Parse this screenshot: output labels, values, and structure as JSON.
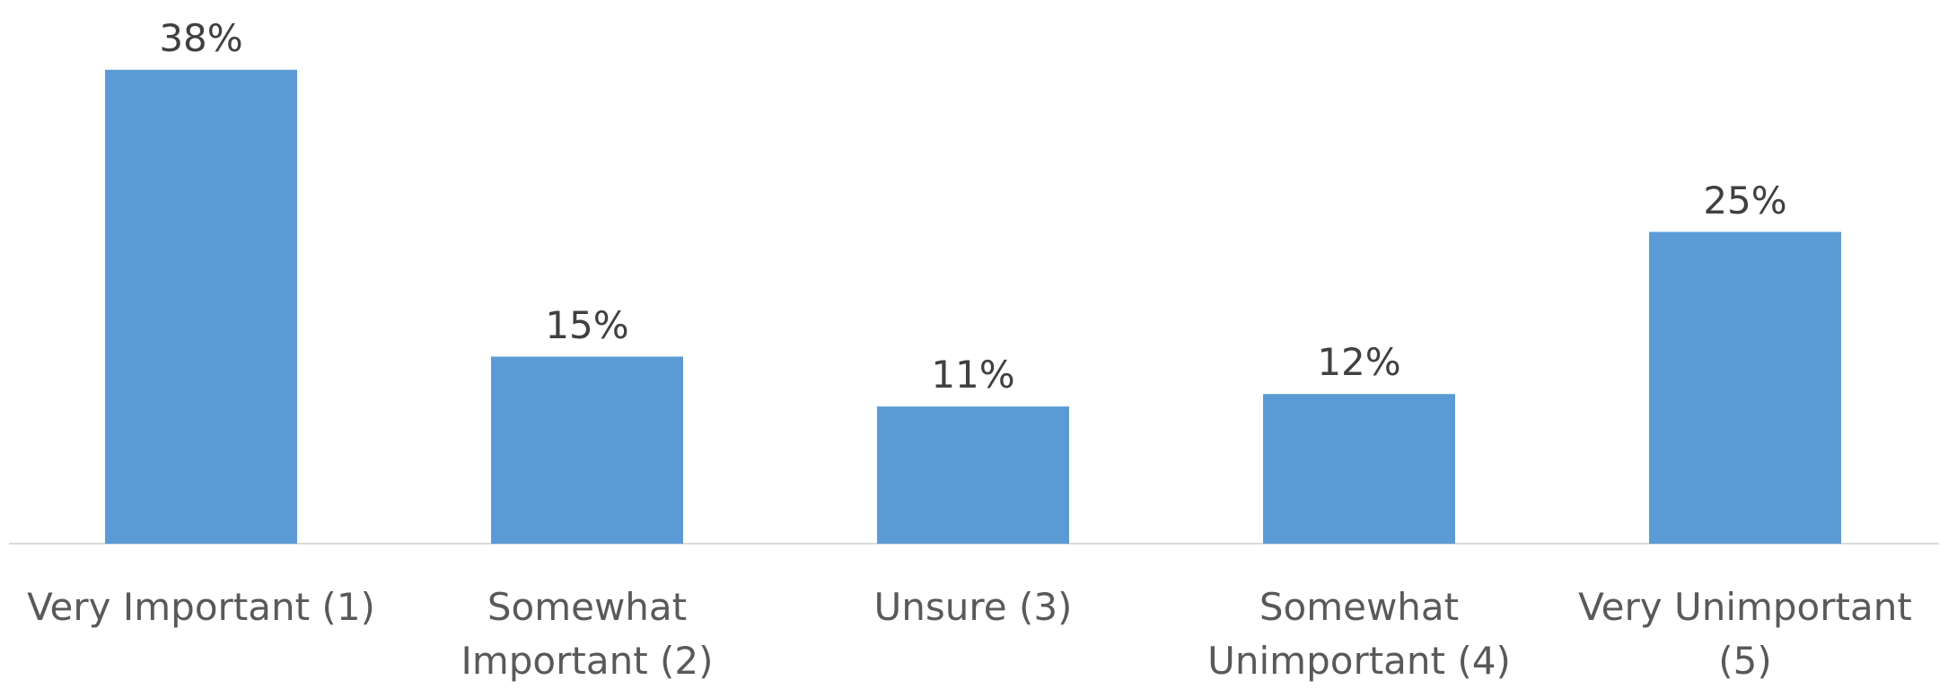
{
  "chart_data": {
    "type": "bar",
    "categories": [
      "Very Important (1)",
      "Somewhat Important (2)",
      "Unsure (3)",
      "Somewhat Unimportant (4)",
      "Very Unimportant (5)"
    ],
    "values": [
      38,
      15,
      11,
      12,
      25
    ],
    "value_labels": [
      "38%",
      "15%",
      "11%",
      "12%",
      "25%"
    ],
    "color": "#5b9bd5"
  }
}
